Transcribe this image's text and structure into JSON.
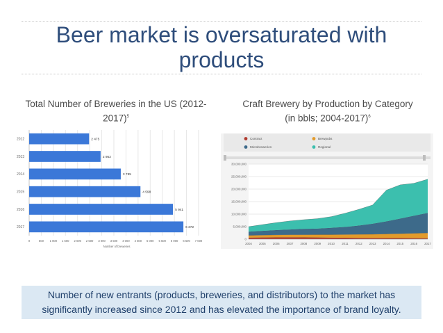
{
  "slide": {
    "title": "Beer market is oversaturated with products",
    "left_subtitle": "Total Number of Breweries in the US (2012-2017)",
    "left_subtitle_ref": "5",
    "right_subtitle_line1": "Craft Brewery by Production by Category",
    "right_subtitle_line2": "(in bbls; 2004-2017)",
    "right_subtitle_ref": "6",
    "note": "Number of new entrants (products, breweries, and distributors) to the market has significantly increased since 2012 and has elevated the importance of brand loyalty."
  },
  "chart_data": [
    {
      "type": "bar",
      "orientation": "horizontal",
      "title": "",
      "xlabel": "Number of breweries",
      "ylabel": "",
      "categories": [
        "2012",
        "2013",
        "2014",
        "2015",
        "2016",
        "2017"
      ],
      "values": [
        2475,
        2952,
        3785,
        4598,
        5941,
        6372
      ],
      "value_labels": [
        "2 475",
        "2 952",
        "3 785",
        "4 598",
        "5 941",
        "6 372"
      ],
      "xlim": [
        0,
        7000
      ],
      "x_ticks": [
        "0",
        "500",
        "1 000",
        "1 500",
        "2 000",
        "2 500",
        "3 000",
        "3 500",
        "4 000",
        "4 500",
        "5 000",
        "5 500",
        "6 000",
        "6 500",
        "7 000"
      ],
      "grid": true,
      "bar_color": "#3b78d8"
    },
    {
      "type": "area",
      "stacked": true,
      "title": "",
      "x": [
        "2004",
        "2005",
        "2006",
        "2007",
        "2008",
        "2009",
        "2010",
        "2011",
        "2012",
        "2013",
        "2014",
        "2015",
        "2016",
        "2017"
      ],
      "ylim": [
        0,
        30000000
      ],
      "y_ticks": [
        "0",
        "5,000,000",
        "10,000,000",
        "15,000,000",
        "20,000,000",
        "25,000,000",
        "30,000,000"
      ],
      "legend": [
        "Contract",
        "Brewpubs",
        "Microbreweries",
        "Regional"
      ],
      "legend_position": "top",
      "grid": true,
      "series": [
        {
          "name": "Contract",
          "color": "#b03a2e",
          "values": [
            600000,
            650000,
            700000,
            720000,
            680000,
            650000,
            600000,
            550000,
            500000,
            450000,
            420000,
            400000,
            380000,
            350000
          ]
        },
        {
          "name": "Brewpubs",
          "color": "#e39b2b",
          "values": [
            900000,
            950000,
            1000000,
            1050000,
            1100000,
            1150000,
            1200000,
            1300000,
            1400000,
            1500000,
            1650000,
            1800000,
            1950000,
            2100000
          ]
        },
        {
          "name": "Microbreweries",
          "color": "#3d6a8a",
          "values": [
            1500000,
            1700000,
            1900000,
            2100000,
            2300000,
            2400000,
            2700000,
            3000000,
            3500000,
            4200000,
            5000000,
            6000000,
            7000000,
            8000000
          ]
        },
        {
          "name": "Regional",
          "color": "#3cbfae",
          "values": [
            2000000,
            2500000,
            3000000,
            3400000,
            3700000,
            4000000,
            4500000,
            5500000,
            6500000,
            7500000,
            12500000,
            13500000,
            13000000,
            13500000
          ]
        }
      ]
    }
  ]
}
